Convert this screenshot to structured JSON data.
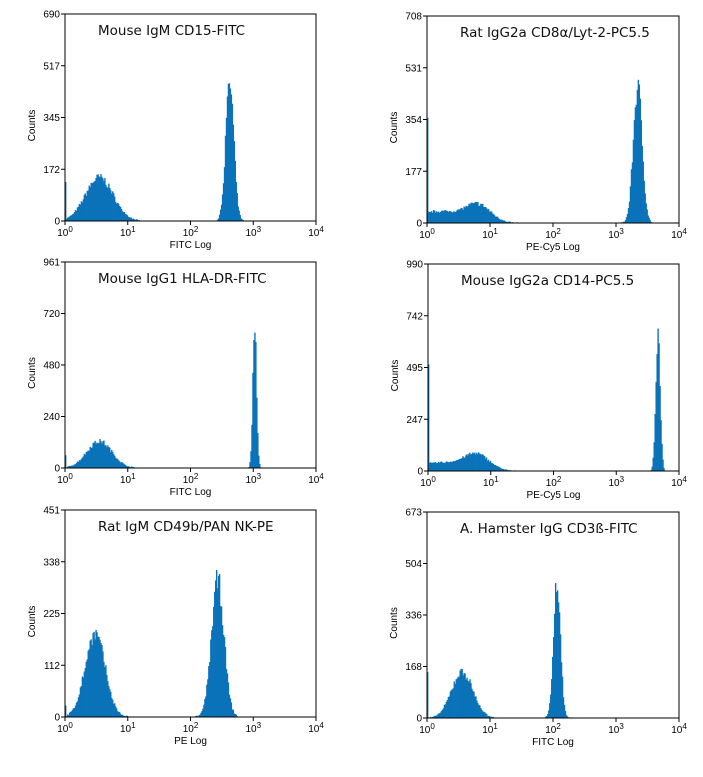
{
  "chart_data": [
    {
      "type": "histogram",
      "title": "Mouse IgM CD15-FITC",
      "xlabel": "FITC Log",
      "ylabel": "Counts",
      "xscale": "log",
      "xlim": [
        1,
        10000
      ],
      "xticks": [
        {
          "base": "10",
          "exp": "0"
        },
        {
          "base": "10",
          "exp": "1"
        },
        {
          "base": "10",
          "exp": "2"
        },
        {
          "base": "10",
          "exp": "3"
        },
        {
          "base": "10",
          "exp": "4"
        }
      ],
      "ylim": [
        0,
        690
      ],
      "yticks": [
        "0",
        "172",
        "345",
        "517",
        "690"
      ],
      "first_bin_count": 130,
      "peaks": [
        {
          "center": 3.5,
          "height": 145,
          "width_decades": 0.22
        },
        {
          "center": 420,
          "height": 455,
          "width_decades": 0.065
        }
      ],
      "color": "#0b72b9"
    },
    {
      "type": "histogram",
      "title": "Rat IgG2a CD8α/Lyt-2-PC5.5",
      "xlabel": "PE-Cy5 Log",
      "ylabel": "Counts",
      "xscale": "log",
      "xlim": [
        1,
        10000
      ],
      "xticks": [
        {
          "base": "10",
          "exp": "0"
        },
        {
          "base": "10",
          "exp": "1"
        },
        {
          "base": "10",
          "exp": "2"
        },
        {
          "base": "10",
          "exp": "3"
        },
        {
          "base": "10",
          "exp": "4"
        }
      ],
      "ylim": [
        0,
        708
      ],
      "yticks": [
        "0",
        "177",
        "354",
        "531",
        "708"
      ],
      "first_bin_count": 360,
      "peaks": [
        {
          "center": 1.5,
          "height": 40,
          "width_decades": 0.4
        },
        {
          "center": 6.5,
          "height": 55,
          "width_decades": 0.2
        },
        {
          "center": 2200,
          "height": 465,
          "width_decades": 0.07
        }
      ],
      "color": "#0b72b9"
    },
    {
      "type": "histogram",
      "title": "Mouse IgG1 HLA-DR-FITC",
      "xlabel": "FITC Log",
      "ylabel": "Counts",
      "xscale": "log",
      "xlim": [
        1,
        10000
      ],
      "xticks": [
        {
          "base": "10",
          "exp": "0"
        },
        {
          "base": "10",
          "exp": "1"
        },
        {
          "base": "10",
          "exp": "2"
        },
        {
          "base": "10",
          "exp": "3"
        },
        {
          "base": "10",
          "exp": "4"
        }
      ],
      "ylim": [
        0,
        961
      ],
      "yticks": [
        "0",
        "240",
        "480",
        "720",
        "961"
      ],
      "first_bin_count": 60,
      "peaks": [
        {
          "center": 3.5,
          "height": 125,
          "width_decades": 0.2
        },
        {
          "center": 1050,
          "height": 645,
          "width_decades": 0.03
        }
      ],
      "color": "#0b72b9"
    },
    {
      "type": "histogram",
      "title": "Mouse IgG2a CD14-PC5.5",
      "xlabel": "PE-Cy5 Log",
      "ylabel": "Counts",
      "xscale": "log",
      "xlim": [
        1,
        10000
      ],
      "xticks": [
        {
          "base": "10",
          "exp": "0"
        },
        {
          "base": "10",
          "exp": "1"
        },
        {
          "base": "10",
          "exp": "2"
        },
        {
          "base": "10",
          "exp": "3"
        },
        {
          "base": "10",
          "exp": "4"
        }
      ],
      "ylim": [
        0,
        990
      ],
      "yticks": [
        "0",
        "247",
        "495",
        "742",
        "990"
      ],
      "first_bin_count": 510,
      "peaks": [
        {
          "center": 1.6,
          "height": 40,
          "width_decades": 0.4
        },
        {
          "center": 6,
          "height": 70,
          "width_decades": 0.2
        },
        {
          "center": 4600,
          "height": 670,
          "width_decades": 0.035
        }
      ],
      "color": "#0b72b9"
    },
    {
      "type": "histogram",
      "title": "Rat IgM CD49b/PAN NK-PE",
      "xlabel": "PE Log",
      "ylabel": "Counts",
      "xscale": "log",
      "xlim": [
        1,
        10000
      ],
      "xticks": [
        {
          "base": "10",
          "exp": "0"
        },
        {
          "base": "10",
          "exp": "1"
        },
        {
          "base": "10",
          "exp": "2"
        },
        {
          "base": "10",
          "exp": "3"
        },
        {
          "base": "10",
          "exp": "4"
        }
      ],
      "ylim": [
        0,
        451
      ],
      "yticks": [
        "0",
        "112",
        "225",
        "338",
        "451"
      ],
      "first_bin_count": 25,
      "peaks": [
        {
          "center": 3,
          "height": 180,
          "width_decades": 0.16
        },
        {
          "center": 270,
          "height": 295,
          "width_decades": 0.1
        }
      ],
      "color": "#0b72b9"
    },
    {
      "type": "histogram",
      "title": "A. Hamster IgG CD3ß-FITC",
      "xlabel": "FITC Log",
      "ylabel": "Counts",
      "xscale": "log",
      "xlim": [
        1,
        10000
      ],
      "xticks": [
        {
          "base": "10",
          "exp": "0"
        },
        {
          "base": "10",
          "exp": "1"
        },
        {
          "base": "10",
          "exp": "2"
        },
        {
          "base": "10",
          "exp": "3"
        },
        {
          "base": "10",
          "exp": "4"
        }
      ],
      "ylim": [
        0,
        673
      ],
      "yticks": [
        "0",
        "168",
        "336",
        "504",
        "673"
      ],
      "first_bin_count": 150,
      "peaks": [
        {
          "center": 3.6,
          "height": 150,
          "width_decades": 0.17
        },
        {
          "center": 115,
          "height": 445,
          "width_decades": 0.055
        }
      ],
      "color": "#0b72b9"
    }
  ]
}
